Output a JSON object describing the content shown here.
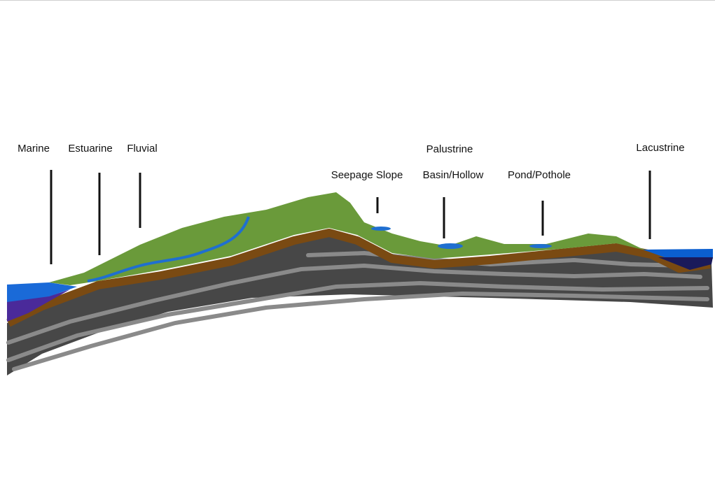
{
  "labels": [
    "Marine",
    "Estuarine",
    "Fluvial",
    "Palustrine",
    "Seepage Slope",
    "Basin/Hollow",
    "Pond/Pothole",
    "Lacustrine"
  ]
}
